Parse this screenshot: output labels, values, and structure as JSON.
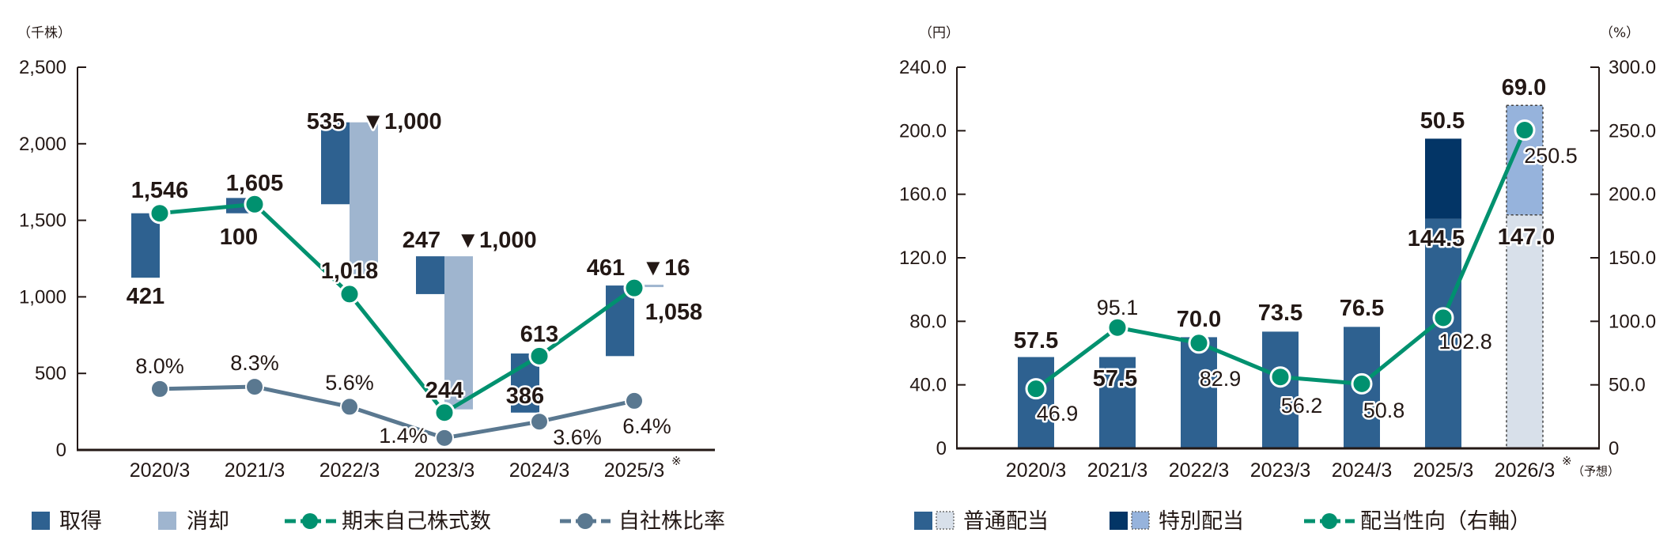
{
  "colors": {
    "acquisition": "#2e6190",
    "cancellation": "#9fb5cf",
    "treasury_line": "#00916f",
    "ratio_line": "#5a7890",
    "ordinary": "#2e6190",
    "ordinary_forecast": "#d8e0ea",
    "special": "#033566",
    "special_forecast": "#96b3dc",
    "payout_line": "#00916f",
    "axis": "#231815"
  },
  "left_chart": {
    "unit_label": "（千株）",
    "y_ticks": [
      "0",
      "500",
      "1,000",
      "1,500",
      "2,000",
      "2,500"
    ],
    "categories": [
      "2020/3",
      "2021/3",
      "2022/3",
      "2023/3",
      "2024/3",
      "2025/3"
    ],
    "note_mark": "※",
    "legend": {
      "acquisition": "取得",
      "cancellation": "消却",
      "treasury_shares": "期末自己株式数",
      "treasury_ratio": "自社株比率"
    }
  },
  "right_chart": {
    "unit_label_left": "（円）",
    "unit_label_right": "（%）",
    "y_ticks_left": [
      "0",
      "40.0",
      "80.0",
      "120.0",
      "160.0",
      "200.0",
      "240.0"
    ],
    "y_ticks_right": [
      "0",
      "50.0",
      "100.0",
      "150.0",
      "200.0",
      "250.0",
      "300.0"
    ],
    "categories": [
      "2020/3",
      "2021/3",
      "2022/3",
      "2023/3",
      "2024/3",
      "2025/3",
      "2026/3"
    ],
    "note_mark": "※",
    "forecast_label": "（予想）",
    "legend": {
      "ordinary": "普通配当",
      "special": "特別配当",
      "payout": "配当性向（右軸）"
    }
  },
  "chart_data": [
    {
      "type": "bar",
      "title": "",
      "ylabel": "千株",
      "ylim": [
        0,
        2500
      ],
      "categories": [
        "2020/3",
        "2021/3",
        "2022/3",
        "2023/3",
        "2024/3",
        "2025/3"
      ],
      "series": [
        {
          "name": "取得",
          "values": [
            421,
            100,
            535,
            247,
            386,
            461
          ],
          "labels": [
            "421",
            "100",
            "535",
            "247",
            "386",
            "461"
          ]
        },
        {
          "name": "消却",
          "values": [
            0,
            0,
            1000,
            1000,
            0,
            16
          ],
          "labels": [
            "",
            "",
            "▼1,000",
            "▼1,000",
            "",
            "▼16"
          ]
        },
        {
          "name": "期末自己株式数",
          "type": "line",
          "values": [
            1546,
            1605,
            1018,
            244,
            613,
            1058
          ],
          "labels": [
            "1,546",
            "1,605",
            "1,018",
            "244",
            "613",
            "1,058"
          ]
        },
        {
          "name": "自社株比率",
          "type": "line",
          "unit": "%",
          "values": [
            8.0,
            8.3,
            5.6,
            1.4,
            3.6,
            6.4
          ],
          "labels": [
            "8.0%",
            "8.3%",
            "5.6%",
            "1.4%",
            "3.6%",
            "6.4%"
          ]
        }
      ],
      "annotations": [
        "2025/3※"
      ],
      "legend_position": "bottom",
      "grid": false
    },
    {
      "type": "bar",
      "title": "",
      "ylabel": "円",
      "y2label": "%",
      "ylim": [
        0,
        240
      ],
      "y2lim": [
        0,
        300
      ],
      "categories": [
        "2020/3",
        "2021/3",
        "2022/3",
        "2023/3",
        "2024/3",
        "2025/3",
        "2026/3"
      ],
      "series": [
        {
          "name": "普通配当",
          "stacked": true,
          "values": [
            57.5,
            57.5,
            70.0,
            73.5,
            76.5,
            144.5,
            147.0
          ],
          "labels": [
            "57.5",
            "57.5",
            "70.0",
            "73.5",
            "76.5",
            "144.5",
            "147.0"
          ],
          "forecast": [
            false,
            false,
            false,
            false,
            false,
            false,
            true
          ]
        },
        {
          "name": "特別配当",
          "stacked": true,
          "values": [
            0,
            0,
            0,
            0,
            0,
            50.5,
            69.0
          ],
          "labels": [
            "",
            "",
            "",
            "",
            "",
            "50.5",
            "69.0"
          ],
          "forecast": [
            false,
            false,
            false,
            false,
            false,
            false,
            true
          ]
        },
        {
          "name": "配当性向（右軸）",
          "type": "line",
          "axis": "right",
          "unit": "%",
          "values": [
            46.9,
            95.1,
            82.9,
            56.2,
            50.8,
            102.8,
            250.5
          ],
          "labels": [
            "46.9",
            "95.1",
            "82.9",
            "56.2",
            "50.8",
            "102.8",
            "250.5"
          ]
        }
      ],
      "annotations": [
        "2026/3※（予想）"
      ],
      "legend_position": "bottom",
      "grid": false
    }
  ]
}
